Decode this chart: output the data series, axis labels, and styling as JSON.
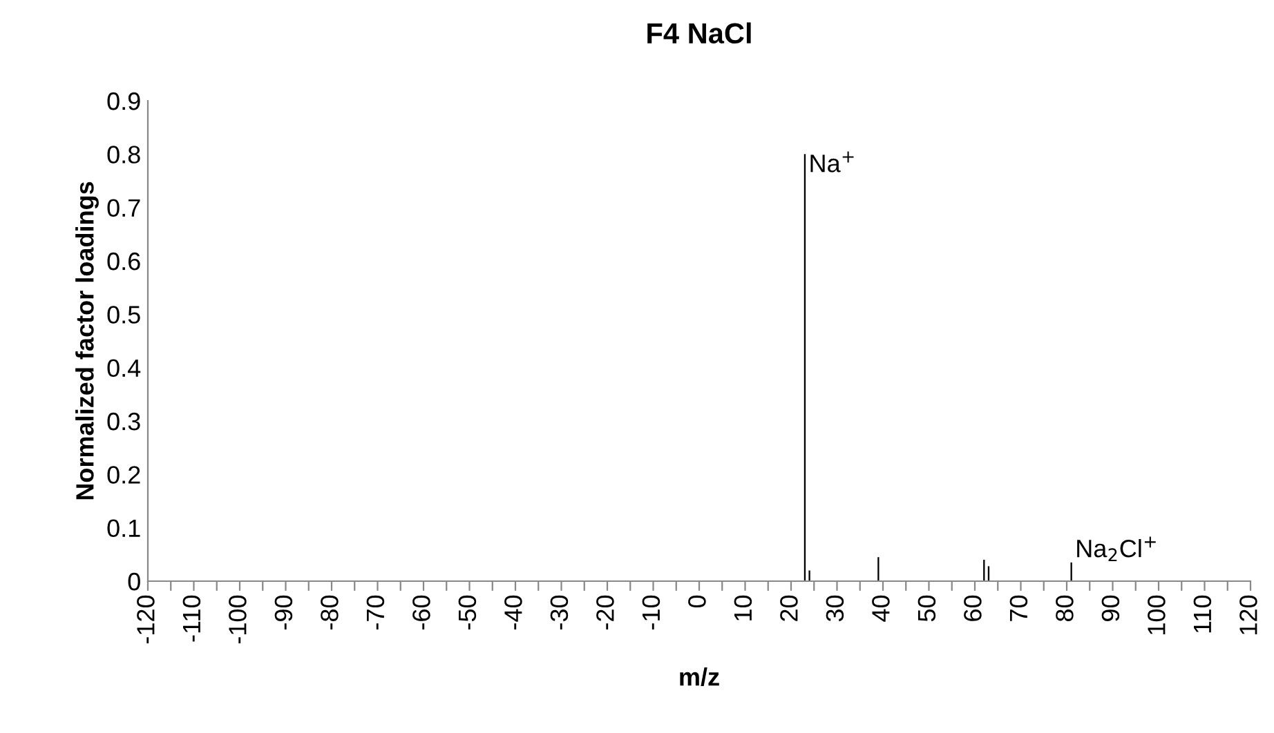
{
  "chart_data": {
    "type": "bar",
    "title": "F4 NaCl",
    "xlabel": "m/z",
    "ylabel": "Normalized factor loadings",
    "x": [
      23,
      24,
      39,
      62,
      63,
      81
    ],
    "values": [
      0.8,
      0.02,
      0.045,
      0.04,
      0.028,
      0.035
    ],
    "color": "#000000",
    "xlim": [
      -120,
      120
    ],
    "xticks": [
      -120,
      {
        "value": -115,
        "label": null
      },
      -110,
      {
        "value": -105,
        "label": null
      },
      -100,
      {
        "value": -95,
        "label": null
      },
      -90,
      {
        "value": -85,
        "label": null
      },
      -80,
      {
        "value": -75,
        "label": null
      },
      -70,
      {
        "value": -65,
        "label": null
      },
      -60,
      {
        "value": -55,
        "label": null
      },
      -50,
      {
        "value": -45,
        "label": null
      },
      -40,
      {
        "value": -35,
        "label": null
      },
      -30,
      {
        "value": -25,
        "label": null
      },
      -20,
      {
        "value": -15,
        "label": null
      },
      -10,
      {
        "value": -5,
        "label": null
      },
      0,
      {
        "value": 5,
        "label": null
      },
      10,
      {
        "value": 15,
        "label": null
      },
      20,
      {
        "value": 25,
        "label": null
      },
      30,
      {
        "value": 35,
        "label": null
      },
      40,
      {
        "value": 45,
        "label": null
      },
      50,
      {
        "value": 55,
        "label": null
      },
      60,
      {
        "value": 65,
        "label": null
      },
      70,
      {
        "value": 75,
        "label": null
      },
      80,
      {
        "value": 85,
        "label": null
      },
      90,
      {
        "value": 95,
        "label": null
      },
      100,
      {
        "value": 105,
        "label": null
      },
      110,
      {
        "value": 115,
        "label": null
      },
      120
    ],
    "ylim": [
      0,
      0.9
    ],
    "yticks": [
      {
        "value": 0,
        "label": "0"
      },
      0.1,
      0.2,
      0.3,
      0.4,
      0.5,
      0.6,
      0.7,
      0.8,
      0.9
    ],
    "grid": false,
    "annotations": [
      {
        "text": "Na$^{+}$",
        "x": 23,
        "y": 0.8
      },
      {
        "text": "Na$_{2}$Cl$^{+}$",
        "x": 81,
        "y": 0.035
      }
    ]
  }
}
